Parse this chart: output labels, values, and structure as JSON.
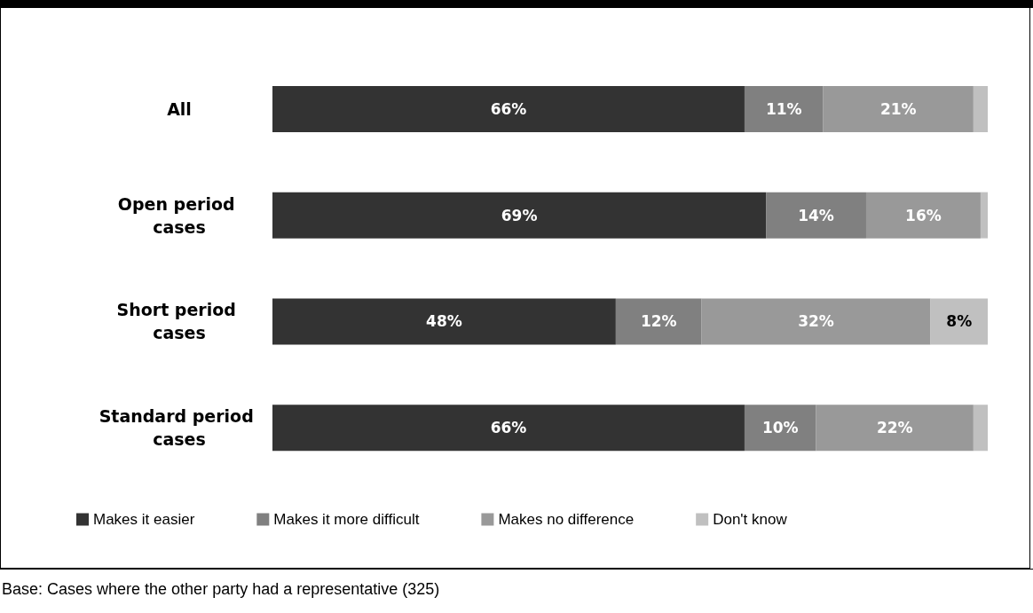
{
  "chart_data": {
    "type": "bar",
    "orientation": "horizontal",
    "stacked": true,
    "categories": [
      "All",
      "Open period cases",
      "Short period cases",
      "Standard period cases"
    ],
    "series": [
      {
        "name": "Makes it easier",
        "color": "#333333",
        "values": [
          66,
          69,
          48,
          66
        ],
        "value_labels": [
          "66%",
          "69%",
          "48%",
          "66%"
        ]
      },
      {
        "name": "Makes it more difficult",
        "color": "#808080",
        "values": [
          11,
          14,
          12,
          10
        ],
        "value_labels": [
          "11%",
          "14%",
          "12%",
          "10%"
        ]
      },
      {
        "name": "Makes no difference",
        "color": "#999999",
        "values": [
          21,
          16,
          32,
          22
        ],
        "value_labels": [
          "21%",
          "16%",
          "32%",
          "22%"
        ]
      },
      {
        "name": "Don't know",
        "color": "#c0c0c0",
        "values": [
          2,
          1,
          8,
          2
        ],
        "value_labels": [
          null,
          null,
          "8%",
          null
        ]
      }
    ],
    "legend": "bottom",
    "grid": false,
    "annotations": [
      "Base:  Cases where the other party had a representative (325)"
    ]
  }
}
